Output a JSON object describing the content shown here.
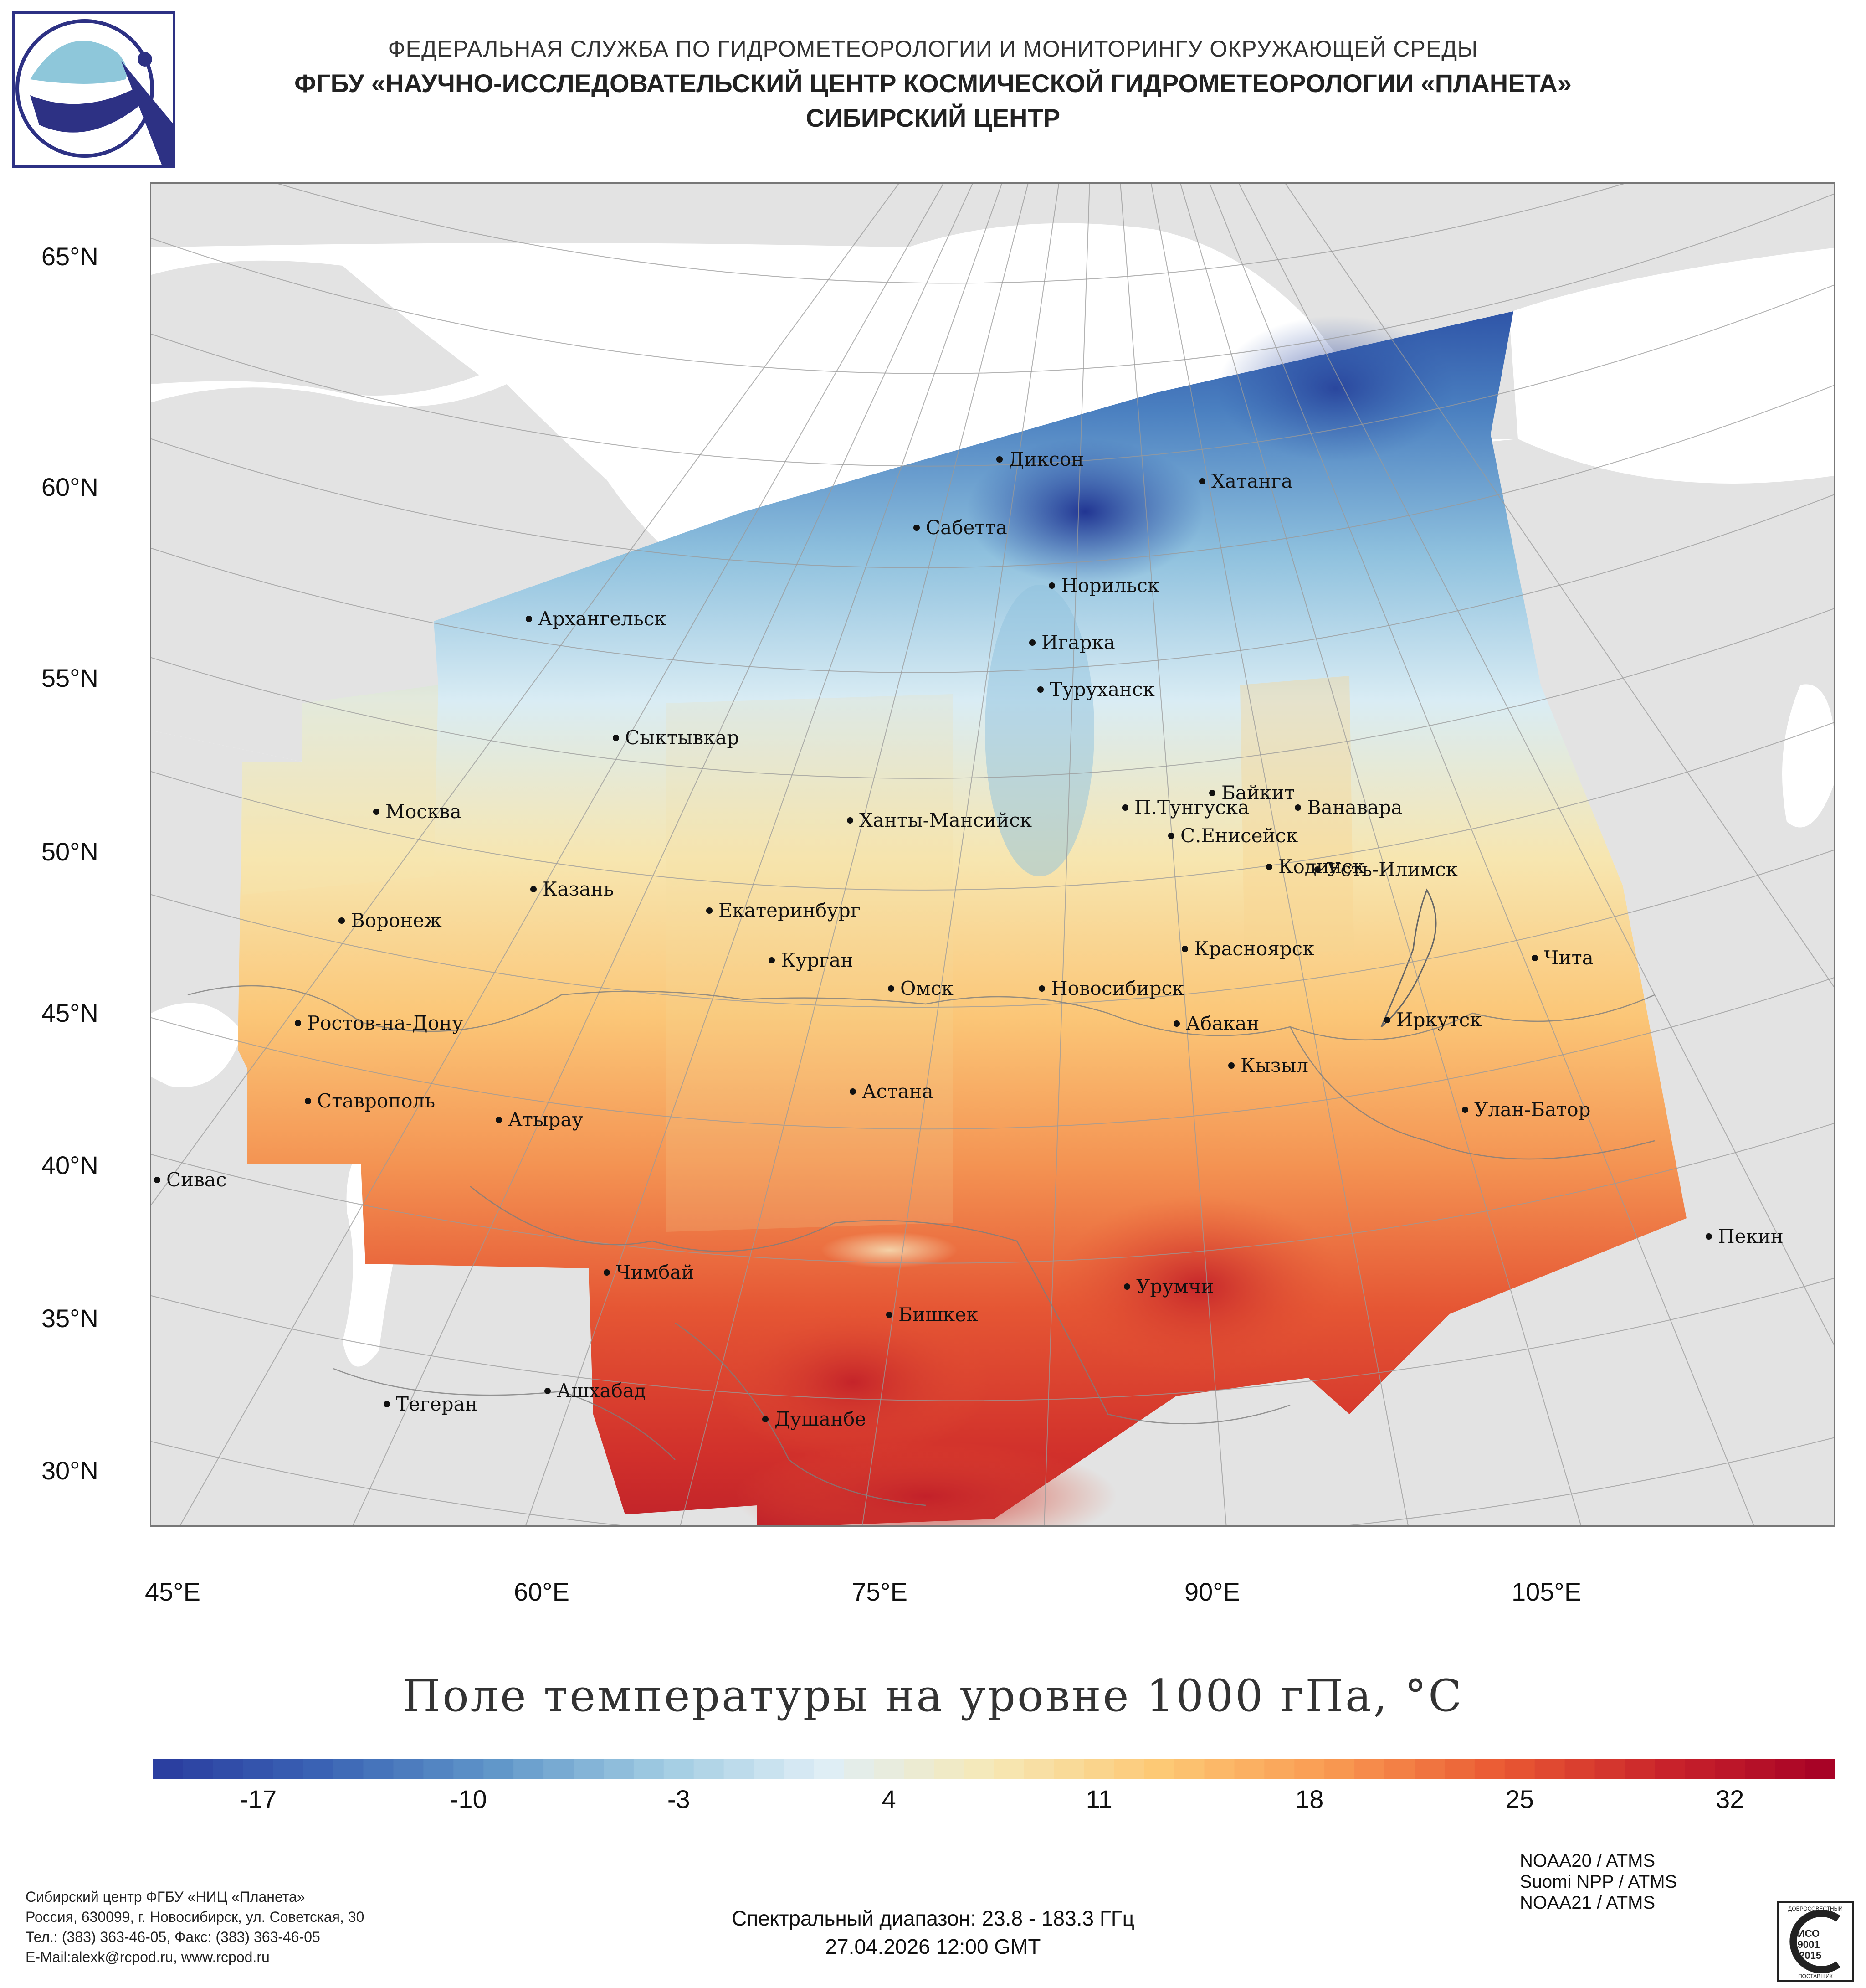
{
  "header": {
    "line1": "ФЕДЕРАЛЬНАЯ СЛУЖБА ПО ГИДРОМЕТЕОРОЛОГИИ И МОНИТОРИНГУ ОКРУЖАЮЩЕЙ СРЕДЫ",
    "line2": "ФГБУ «НАУЧНО-ИССЛЕДОВАТЕЛЬСКИЙ ЦЕНТР КОСМИЧЕСКОЙ ГИДРОМЕТЕОРОЛОГИИ «ПЛАНЕТА»",
    "line3": "СИБИРСКИЙ ЦЕНТР"
  },
  "map": {
    "lat_labels": [
      "65°N",
      "60°N",
      "55°N",
      "50°N",
      "45°N",
      "40°N",
      "35°N",
      "30°N"
    ],
    "lon_labels": [
      "45°E",
      "60°E",
      "75°E",
      "90°E",
      "105°E"
    ],
    "cities": [
      {
        "name": "Диксон"
      },
      {
        "name": "Хатанга"
      },
      {
        "name": "Сабетта"
      },
      {
        "name": "Норильск"
      },
      {
        "name": "Архангельск"
      },
      {
        "name": "Игарка"
      },
      {
        "name": "Туруханск"
      },
      {
        "name": "Сыктывкар"
      },
      {
        "name": "Байкит"
      },
      {
        "name": "П.Тунгуска"
      },
      {
        "name": "Ванавара"
      },
      {
        "name": "Москва"
      },
      {
        "name": "Ханты-Мансийск"
      },
      {
        "name": "С.Енисейск"
      },
      {
        "name": "Кодинск"
      },
      {
        "name": "Усть-Илимск"
      },
      {
        "name": "Казань"
      },
      {
        "name": "Екатеринбург"
      },
      {
        "name": "Воронеж"
      },
      {
        "name": "Красноярск"
      },
      {
        "name": "Курган"
      },
      {
        "name": "Чита"
      },
      {
        "name": "Омск"
      },
      {
        "name": "Новосибирск"
      },
      {
        "name": "Иркутск"
      },
      {
        "name": "Абакан"
      },
      {
        "name": "Ростов-на-Дону"
      },
      {
        "name": "Кызыл"
      },
      {
        "name": "Ставрополь"
      },
      {
        "name": "Астана"
      },
      {
        "name": "Улан-Батор"
      },
      {
        "name": "Атырау"
      },
      {
        "name": "Сивас"
      },
      {
        "name": "Пекин"
      },
      {
        "name": "Чимбай"
      },
      {
        "name": "Урумчи"
      },
      {
        "name": "Бишкек"
      },
      {
        "name": "Ашхабад"
      },
      {
        "name": "Тегеран"
      },
      {
        "name": "Душанбе"
      }
    ]
  },
  "title": "Поле температуры на уровне 1000 гПа, °C",
  "colorbar": {
    "min": -20.5,
    "max": 35.5,
    "ticks": [
      -17,
      -10,
      -3,
      4,
      11,
      18,
      25,
      32
    ],
    "colors": [
      "#2a3c9e",
      "#3a63b4",
      "#5e94c8",
      "#9ecae1",
      "#dfeef6",
      "#f6e8b5",
      "#fdc874",
      "#f99a52",
      "#ea5a33",
      "#c9232b",
      "#a50026"
    ]
  },
  "footer_left": [
    "Сибирский центр ФГБУ «НИЦ «Планета»",
    "Россия, 630099, г. Новосибирск, ул. Советская, 30",
    "Тел.: (383) 363-46-05, Факс: (383) 363-46-05",
    "E-Mail:alexk@rcpod.ru, www.rcpod.ru"
  ],
  "footer_center": {
    "spectral": "Спектральный диапазон: 23.8 - 183.3 ГГц",
    "datetime": "27.04.2026 12:00 GMT"
  },
  "satellites": [
    "NOAA20 / ATMS",
    "Suomi NPP / ATMS",
    "NOAA21 / ATMS"
  ],
  "iso_badge": {
    "top": "ДОБРОСОВЕСТНЫЙ",
    "mid1": "ИСО",
    "mid2": "9001",
    "mid3": "-2015",
    "bottom": "ПОСТАВЩИК"
  }
}
